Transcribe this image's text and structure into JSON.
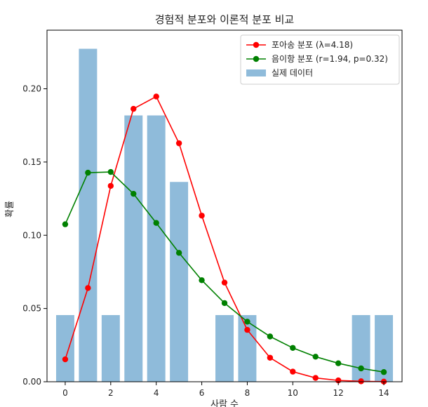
{
  "chart_data": {
    "type": "bar",
    "title": "경험적 분포와 이론적 분포 비교",
    "xlabel": "사람 수",
    "ylabel": "확률",
    "xlim": [
      -0.8,
      14.8
    ],
    "ylim": [
      0,
      0.24
    ],
    "xticks": [
      0,
      2,
      4,
      6,
      8,
      10,
      12,
      14
    ],
    "yticks": [
      0.0,
      0.05,
      0.1,
      0.15,
      0.2
    ],
    "ytick_labels": [
      "0.00",
      "0.05",
      "0.10",
      "0.15",
      "0.20"
    ],
    "grid": false,
    "legend_position": "top-right",
    "bars": {
      "name": "실제 데이터",
      "color": "#8fbbda",
      "x": [
        0,
        1,
        2,
        3,
        4,
        5,
        7,
        8,
        13,
        14
      ],
      "values": [
        0.0455,
        0.2273,
        0.0455,
        0.1818,
        0.1818,
        0.1364,
        0.0455,
        0.0455,
        0.0455,
        0.0455
      ]
    },
    "series": [
      {
        "name": "포아송 분포 (λ=4.18)",
        "type": "line",
        "color": "#ff0000",
        "x": [
          0,
          1,
          2,
          3,
          4,
          5,
          6,
          7,
          8,
          9,
          10,
          11,
          12,
          13,
          14
        ],
        "values": [
          0.0153,
          0.064,
          0.1337,
          0.1863,
          0.1947,
          0.1628,
          0.1134,
          0.0677,
          0.0354,
          0.0164,
          0.0069,
          0.0026,
          0.0009,
          0.0003,
          0.0001
        ]
      },
      {
        "name": "음이항 분포 (r=1.94, p=0.32)",
        "type": "line",
        "color": "#008000",
        "x": [
          0,
          1,
          2,
          3,
          4,
          5,
          6,
          7,
          8,
          9,
          10,
          11,
          12,
          13,
          14
        ],
        "values": [
          0.1075,
          0.1427,
          0.1432,
          0.1283,
          0.1084,
          0.088,
          0.0693,
          0.0537,
          0.041,
          0.0309,
          0.0231,
          0.0171,
          0.0126,
          0.0091,
          0.0066
        ]
      }
    ]
  }
}
